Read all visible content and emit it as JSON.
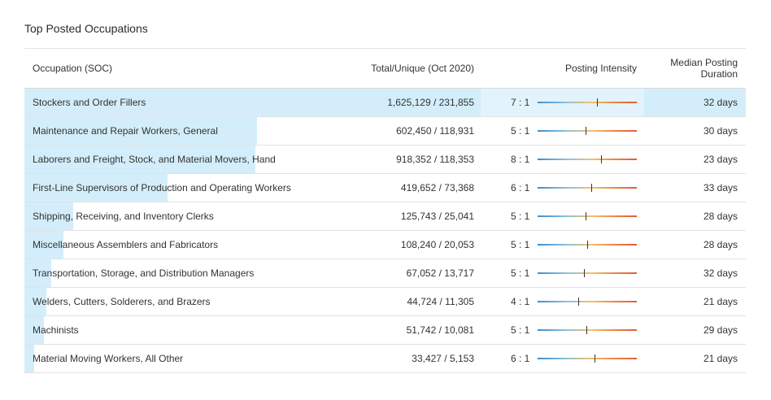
{
  "title": "Top Posted Occupations",
  "columns": {
    "occupation": "Occupation (SOC)",
    "total_unique": "Total/Unique (Oct 2020)",
    "intensity": "Posting Intensity",
    "median_line1": "Median Posting",
    "median_line2": "Duration"
  },
  "colors": {
    "bar": "#d3eefa",
    "highlight_row": "#e2f3fb",
    "gauge_low": "#3b8fd0",
    "gauge_high": "#e25b3a"
  },
  "rows": [
    {
      "occupation": "Stockers and Order Fillers",
      "total_unique": "1,625,129 / 231,855",
      "ratio": "7 : 1",
      "intensity_level": 0.6,
      "bar_fraction": 1.0,
      "median": "32 days"
    },
    {
      "occupation": "Maintenance and Repair Workers, General",
      "total_unique": "602,450 / 118,931",
      "ratio": "5 : 1",
      "intensity_level": 0.48,
      "bar_fraction": 0.513,
      "median": "30 days"
    },
    {
      "occupation": "Laborers and Freight, Stock, and Material Movers, Hand",
      "total_unique": "918,352 / 118,353",
      "ratio": "8 : 1",
      "intensity_level": 0.64,
      "bar_fraction": 0.51,
      "median": "23 days"
    },
    {
      "occupation": "First-Line Supervisors of Production and Operating Workers",
      "total_unique": "419,652 / 73,368",
      "ratio": "6 : 1",
      "intensity_level": 0.54,
      "bar_fraction": 0.316,
      "median": "33 days"
    },
    {
      "occupation": "Shipping, Receiving, and Inventory Clerks",
      "total_unique": "125,743 / 25,041",
      "ratio": "5 : 1",
      "intensity_level": 0.48,
      "bar_fraction": 0.108,
      "median": "28 days"
    },
    {
      "occupation": "Miscellaneous Assemblers and Fabricators",
      "total_unique": "108,240 / 20,053",
      "ratio": "5 : 1",
      "intensity_level": 0.5,
      "bar_fraction": 0.086,
      "median": "28 days"
    },
    {
      "occupation": "Transportation, Storage, and Distribution Managers",
      "total_unique": "67,052 / 13,717",
      "ratio": "5 : 1",
      "intensity_level": 0.47,
      "bar_fraction": 0.059,
      "median": "32 days"
    },
    {
      "occupation": "Welders, Cutters, Solderers, and Brazers",
      "total_unique": "44,724 / 11,305",
      "ratio": "4 : 1",
      "intensity_level": 0.41,
      "bar_fraction": 0.049,
      "median": "21 days"
    },
    {
      "occupation": "Machinists",
      "total_unique": "51,742 / 10,081",
      "ratio": "5 : 1",
      "intensity_level": 0.49,
      "bar_fraction": 0.043,
      "median": "29 days"
    },
    {
      "occupation": "Material Moving Workers, All Other",
      "total_unique": "33,427 / 5,153",
      "ratio": "6 : 1",
      "intensity_level": 0.57,
      "bar_fraction": 0.022,
      "median": "21 days"
    }
  ]
}
